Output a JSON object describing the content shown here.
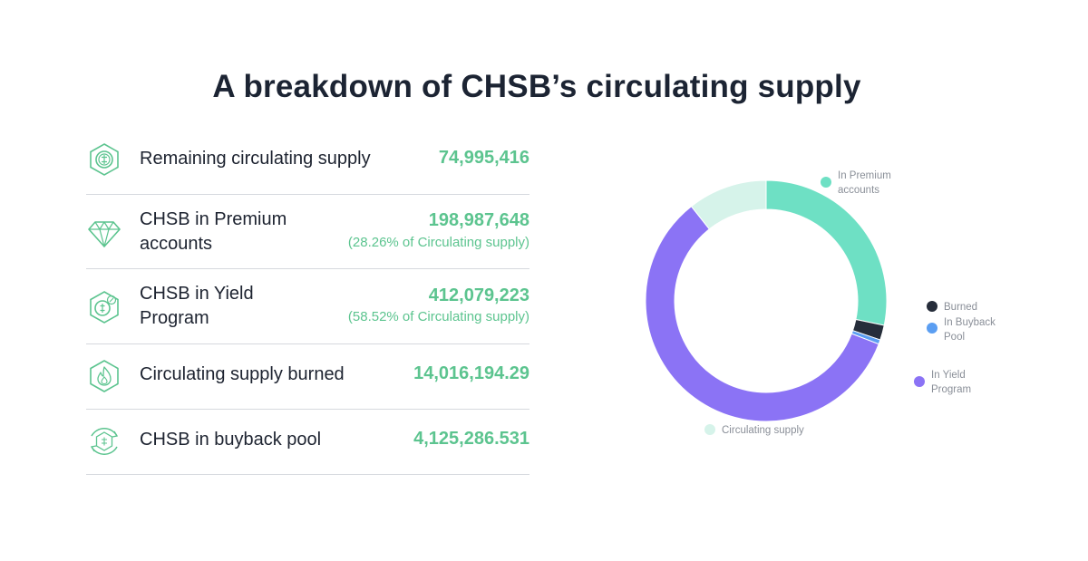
{
  "title": "A breakdown of CHSB’s circulating supply",
  "stats": [
    {
      "icon": "coin-hexagon-icon",
      "label": "Remaining circulating supply",
      "value": "74,995,416",
      "pct": ""
    },
    {
      "icon": "diamond-icon",
      "label_lines": [
        "CHSB in Premium",
        "accounts"
      ],
      "value": "198,987,648",
      "pct": "(28.26% of Circulating supply)"
    },
    {
      "icon": "yield-coin-icon",
      "label_lines": [
        "CHSB in Yield",
        "Program"
      ],
      "value": "412,079,223",
      "pct": "(58.52% of Circulating supply)"
    },
    {
      "icon": "flame-icon",
      "label": "Circulating supply burned",
      "value": "14,016,194.29",
      "pct": ""
    },
    {
      "icon": "buyback-cycle-icon",
      "label": "CHSB in buyback pool",
      "value": "4,125,286.531",
      "pct": ""
    }
  ],
  "chart_data": {
    "type": "pie",
    "donut": true,
    "slices": [
      {
        "name": "In Premium accounts",
        "value": 198987648,
        "color": "#6ee0c4"
      },
      {
        "name": "Burned",
        "value": 14016194.29,
        "color": "#262d3a"
      },
      {
        "name": "In Buyback Pool",
        "value": 4125286.531,
        "color": "#5b9ef2"
      },
      {
        "name": "In Yield Program",
        "value": 412079223,
        "color": "#8b73f5"
      },
      {
        "name": "Circulating supply",
        "value": 74995416,
        "color": "#d6f3ea"
      }
    ],
    "legend": {
      "premium": [
        "In Premium",
        "accounts"
      ],
      "burned": [
        "Burned"
      ],
      "buyback": [
        "In Buyback",
        "Pool"
      ],
      "yield": [
        "In Yield",
        "Program"
      ],
      "circulating": [
        "Circulating supply"
      ]
    },
    "legend_placement": "around the chart"
  }
}
